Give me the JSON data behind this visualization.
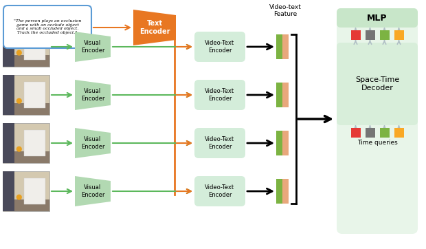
{
  "bg_color": "#ffffff",
  "green_light": "#e8f5e9",
  "green_trapezoid": "#b2d9b2",
  "orange_color": "#e87722",
  "green_arrow": "#5cb85c",
  "text_box_border": "#5b9bd5",
  "vte_bg": "#d4edda",
  "time_query_colors": [
    "#e53935",
    "#757575",
    "#7cb342",
    "#f9a825"
  ],
  "query_text": "Time queries",
  "mlp_text": "MLP",
  "decoder_text": "Space-Time\nDecoder",
  "text_encoder_text": "Text\nEncoder",
  "visual_encoder_text": "Visual\nEncoder",
  "vt_encoder_text": "Video-Text\nEncoder",
  "feature_label": "Video-text\nFeature",
  "input_text": "\"The person plays an occlusion\ngame with an occlude object\nand a small occluded object.\nTrack the occluded object.\"",
  "fig_width": 6.2,
  "fig_height": 3.62,
  "dpi": 100
}
